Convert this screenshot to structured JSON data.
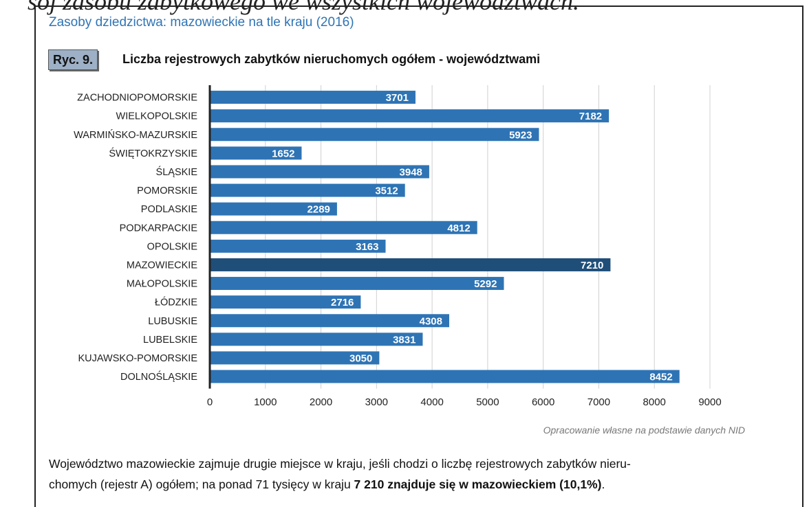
{
  "top_partial_text": "sój zasobu zabytkowego we wszystkich województwach.",
  "page_header": "Zasoby dziedzictwa: mazowieckie na tle kraju (2016)",
  "figure": {
    "label": "Ryc. 9.",
    "title": "Liczba rejestrowych zabytków nieruchomych ogółem - województwami"
  },
  "colors": {
    "bar": "#2e74b5",
    "highlight": "#1f4e79",
    "bar_label": "#ffffff",
    "grid": "#d0d0d0",
    "axis": "#222222",
    "text": "#222222"
  },
  "chart_data": {
    "type": "bar",
    "orientation": "horizontal",
    "categories": [
      "ZACHODNIOPOMORSKIE",
      "WIELKOPOLSKIE",
      "WARMIŃSKO-MAZURSKIE",
      "ŚWIĘTOKRZYSKIE",
      "ŚLĄSKIE",
      "POMORSKIE",
      "PODLASKIE",
      "PODKARPACKIE",
      "OPOLSKIE",
      "MAZOWIECKIE",
      "MAŁOPOLSKIE",
      "ŁÓDZKIE",
      "LUBUSKIE",
      "LUBELSKIE",
      "KUJAWSKO-POMORSKIE",
      "DOLNOŚLĄSKIE"
    ],
    "values": [
      3701,
      7182,
      5923,
      1652,
      3948,
      3512,
      2289,
      4812,
      3163,
      7210,
      5292,
      2716,
      4308,
      3831,
      3050,
      8452
    ],
    "highlight_category": "MAZOWIECKIE",
    "xlim": [
      0,
      9000
    ],
    "xticks": [
      0,
      1000,
      2000,
      3000,
      4000,
      5000,
      6000,
      7000,
      8000,
      9000
    ],
    "data_labels": true,
    "grid": "vertical"
  },
  "source_note": "Opracowanie własne na podstawie danych NID",
  "paragraph": {
    "line1": "Województwo mazowieckie zajmuje drugie miejsce w kraju, jeśli chodzi o liczbę rejestrowych zabytków nieru-",
    "line2_plain": "chomych (rejestr A) ogółem; na ponad 71 tysięcy w kraju ",
    "line2_bold": "7 210 znajduje się w mazowieckiem (10,1%)",
    "line2_end": "."
  }
}
